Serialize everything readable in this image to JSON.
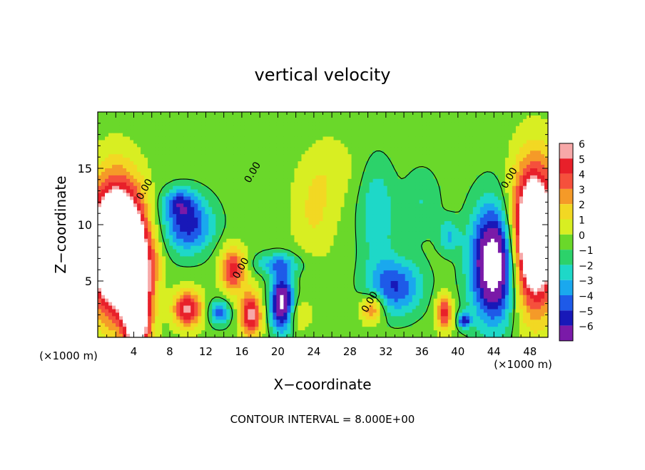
{
  "chart_data": {
    "type": "heatmap",
    "title": "vertical velocity",
    "xlabel": "X−coordinate",
    "ylabel": "Z−coordinate",
    "x_unit_left": "(×1000 m)",
    "x_unit_right": "(×1000 m)",
    "xlim": [
      0,
      50
    ],
    "ylim": [
      0,
      20
    ],
    "x_ticks": [
      4,
      8,
      12,
      16,
      20,
      24,
      28,
      32,
      36,
      40,
      44,
      48
    ],
    "y_ticks": [
      5,
      10,
      15
    ],
    "footer": "CONTOUR INTERVAL = 8.000E+00",
    "contour_label": "0.00",
    "colorbar": {
      "ticks": [
        "6",
        "5",
        "4",
        "3",
        "2",
        "1",
        "0",
        "−1",
        "−2",
        "−3",
        "−4",
        "−5",
        "−6"
      ],
      "colors": [
        "#f7a8a8",
        "#e8202a",
        "#f5503c",
        "#f59a28",
        "#f2d823",
        "#d8ee22",
        "#6ad82a",
        "#2cd26a",
        "#1ed8c8",
        "#1aa8ee",
        "#1e5ae8",
        "#1818b8",
        "#7a1aa8"
      ]
    },
    "blobs": [
      {
        "x": 4.4,
        "y": 3,
        "rx": 1.5,
        "ry": 6,
        "v": 9
      },
      {
        "x": 2,
        "y": 8,
        "rx": 2.8,
        "ry": 5.5,
        "v": 14
      },
      {
        "x": 10,
        "y": 10,
        "rx": 2.8,
        "ry": 2.5,
        "v": -5
      },
      {
        "x": 9,
        "y": 12,
        "rx": 1.8,
        "ry": 1.2,
        "v": -3
      },
      {
        "x": 10,
        "y": 2.5,
        "rx": 1.6,
        "ry": 1.6,
        "v": 6
      },
      {
        "x": 13.5,
        "y": 2.2,
        "rx": 1.2,
        "ry": 1.1,
        "v": -4
      },
      {
        "x": 15,
        "y": 6,
        "rx": 1.4,
        "ry": 2,
        "v": 5
      },
      {
        "x": 17,
        "y": 2,
        "rx": 1.2,
        "ry": 2,
        "v": 6
      },
      {
        "x": 20.5,
        "y": 3,
        "rx": 1.3,
        "ry": 2.5,
        "v": -8
      },
      {
        "x": 20,
        "y": 6.5,
        "rx": 2.5,
        "ry": 1,
        "v": -3
      },
      {
        "x": 24,
        "y": 11,
        "rx": 2.5,
        "ry": 4,
        "v": 1.6
      },
      {
        "x": 22,
        "y": 2,
        "rx": 1.5,
        "ry": 1.5,
        "v": 2
      },
      {
        "x": 30.5,
        "y": 2.5,
        "rx": 1.3,
        "ry": 1.3,
        "v": 4
      },
      {
        "x": 33,
        "y": 4.5,
        "rx": 3,
        "ry": 2.5,
        "v": -4.5
      },
      {
        "x": 31,
        "y": 11,
        "rx": 2,
        "ry": 4.5,
        "v": -2.5
      },
      {
        "x": 38.5,
        "y": 2.2,
        "rx": 0.9,
        "ry": 1.6,
        "v": 5
      },
      {
        "x": 40.7,
        "y": 1.5,
        "rx": 0.7,
        "ry": 0.7,
        "v": -5
      },
      {
        "x": 44,
        "y": 6.5,
        "rx": 2.5,
        "ry": 5,
        "v": -9
      },
      {
        "x": 39,
        "y": 9,
        "rx": 1.2,
        "ry": 1.5,
        "v": -2.5
      },
      {
        "x": 48.5,
        "y": 9,
        "rx": 2.5,
        "ry": 6,
        "v": 12
      },
      {
        "x": 6.5,
        "y": 7,
        "rx": 1,
        "ry": 3,
        "v": 1.2
      },
      {
        "x": 26,
        "y": 15,
        "rx": 3,
        "ry": 3,
        "v": 1
      },
      {
        "x": 36,
        "y": 12,
        "rx": 2,
        "ry": 3,
        "v": -1.5
      }
    ]
  }
}
